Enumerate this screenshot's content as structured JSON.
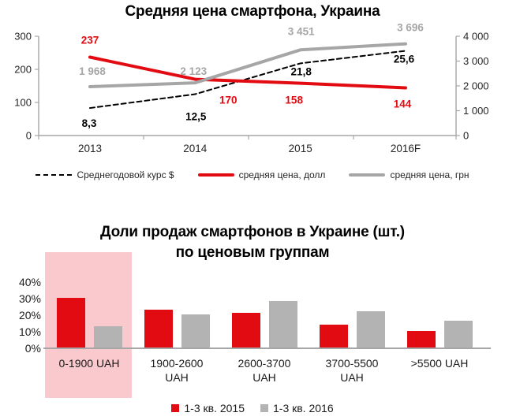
{
  "colors": {
    "red": "#e30b12",
    "gray_line": "#a6a6a6",
    "gray_bar": "#b3b3b3",
    "pink_highlight": "#f9c9cd",
    "axis": "#a6a6a6",
    "black": "#000000"
  },
  "chart_data": [
    {
      "type": "line",
      "title": "Средняя цена смартфона, Украина",
      "categories": [
        "2013",
        "2014",
        "2015",
        "2016F"
      ],
      "left_axis": {
        "min": 0,
        "max": 300,
        "ticks": [
          "300",
          "200",
          "100",
          "0"
        ]
      },
      "right_axis": {
        "min": 0,
        "max": 4000,
        "ticks": [
          "4 000",
          "3 000",
          "2 000",
          "1 000",
          "0"
        ]
      },
      "grid": false,
      "legend_position": "bottom",
      "series": [
        {
          "name": "Среднегодовой курс $",
          "axis": "left",
          "plot_multiplier": 10,
          "style": "dashed",
          "color": "#000000",
          "label_color": "#000000",
          "values": [
            8.3,
            12.5,
            21.8,
            25.6
          ],
          "labels": [
            "8,3",
            "12,5",
            "21,8",
            "25,6"
          ]
        },
        {
          "name": "средняя цена, долл",
          "axis": "left",
          "plot_multiplier": 1,
          "style": "solid",
          "color": "#e30b12",
          "label_color": "#e30b12",
          "values": [
            237,
            170,
            158,
            144
          ],
          "labels": [
            "237",
            "170",
            "158",
            "144"
          ]
        },
        {
          "name": "средняя цена, грн",
          "axis": "right",
          "plot_multiplier": 1,
          "style": "solid",
          "color": "#a6a6a6",
          "label_color": "#a6a6a6",
          "values": [
            1968,
            2123,
            3451,
            3696
          ],
          "labels": [
            "1 968",
            "2 123",
            "3 451",
            "3 696"
          ]
        }
      ]
    },
    {
      "type": "bar",
      "title_line1": "Доли продаж смартфонов в Украине (шт.)",
      "title_line2": "по ценовым группам",
      "categories": [
        "0-1900 UAH",
        "1900-2600\nUAH",
        "2600-3700\nUAH",
        "3700-5500\nUAH",
        ">5500 UAH"
      ],
      "y_axis": {
        "min": 0,
        "max": 40,
        "ticks": [
          "40%",
          "30%",
          "20%",
          "10%",
          "0%"
        ],
        "unit": "%"
      },
      "highlighted_category": "0-1900 UAH",
      "grid": false,
      "legend_position": "bottom",
      "series": [
        {
          "name": "1-3 кв. 2015",
          "color": "#e30b12",
          "values": [
            30,
            23,
            21,
            14,
            10
          ]
        },
        {
          "name": "1-3 кв. 2016",
          "color": "#b3b3b3",
          "values": [
            13,
            20,
            28,
            22,
            16
          ]
        }
      ]
    }
  ]
}
